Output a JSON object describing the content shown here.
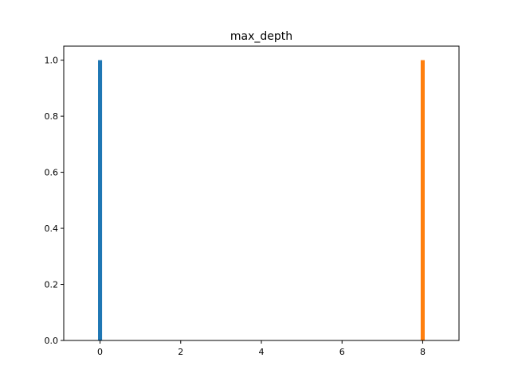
{
  "chart_data": {
    "type": "bar",
    "title": "max_depth",
    "xlabel": "",
    "ylabel": "",
    "x": [
      0,
      8
    ],
    "series": [
      {
        "x": 0,
        "value": 1.0,
        "color": "#1f77b4"
      },
      {
        "x": 8,
        "value": 1.0,
        "color": "#ff7f0e"
      }
    ],
    "bar_width": 0.1,
    "xlim": [
      -0.9,
      8.9
    ],
    "ylim": [
      0,
      1.05
    ],
    "xticks": [
      0,
      2,
      4,
      6,
      8
    ],
    "xtick_labels": [
      "0",
      "2",
      "4",
      "6",
      "8"
    ],
    "yticks": [
      0.0,
      0.2,
      0.4,
      0.6,
      0.8,
      1.0
    ],
    "ytick_labels": [
      "0.0",
      "0.2",
      "0.4",
      "0.6",
      "0.8",
      "1.0"
    ],
    "grid": false,
    "legend": "none",
    "colors": {
      "axis": "#000000",
      "background": "#ffffff"
    }
  }
}
